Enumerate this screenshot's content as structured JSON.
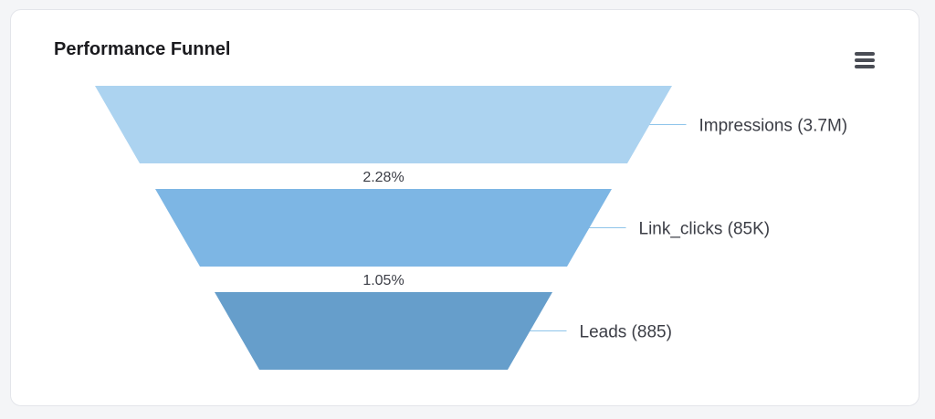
{
  "card": {
    "title": "Performance Funnel",
    "menu_icon": "hamburger-menu-icon"
  },
  "chart_data": {
    "type": "funnel",
    "title": "Performance Funnel",
    "stages": [
      {
        "name": "Impressions",
        "value": 3700000,
        "display": "3.7M",
        "label": "Impressions (3.7M)",
        "color": "#acd3f0"
      },
      {
        "name": "Link_clicks",
        "value": 85000,
        "display": "85K",
        "label": "Link_clicks (85K)",
        "color": "#7db6e4"
      },
      {
        "name": "Leads",
        "value": 885,
        "display": "885",
        "label": "Leads (885)",
        "color": "#669ecb"
      }
    ],
    "conversions": [
      "2.28%",
      "1.05%"
    ],
    "connector_color": "#8ec4ea"
  }
}
